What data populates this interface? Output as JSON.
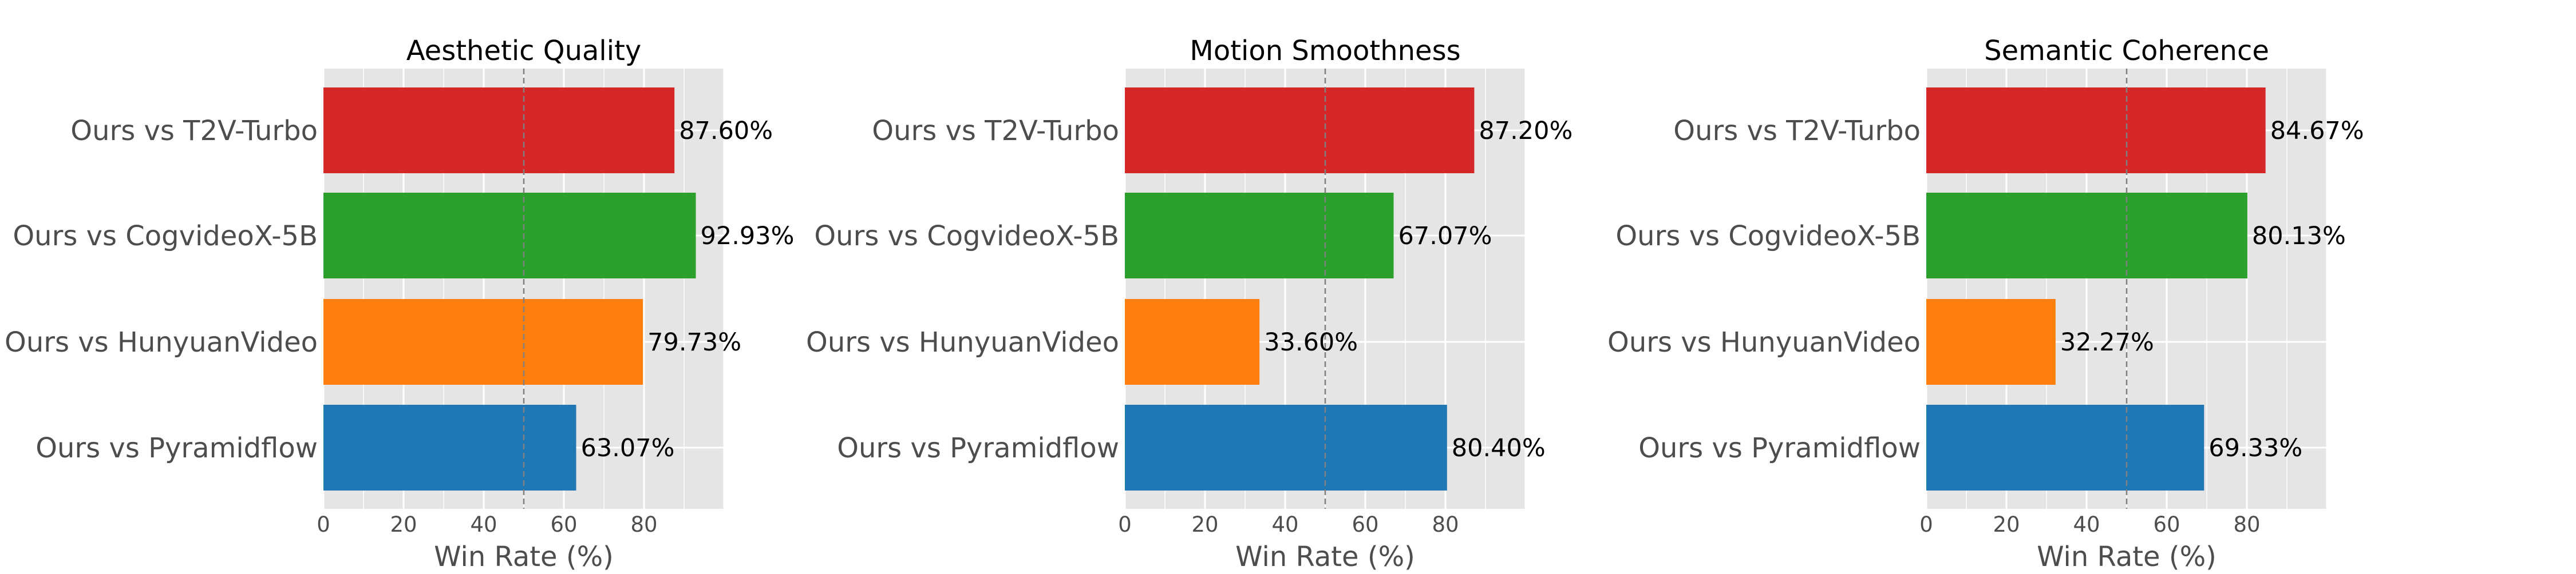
{
  "chart_data": [
    {
      "type": "bar",
      "orientation": "horizontal",
      "title": "Aesthetic Quality",
      "xlabel": "Win Rate (%)",
      "ylabel": "",
      "xlim": [
        0,
        100
      ],
      "xticks": [
        0,
        20,
        40,
        60,
        80
      ],
      "reference_line": 50,
      "grid": true,
      "categories": [
        "Ours vs T2V-Turbo",
        "Ours vs CogvideoX-5B",
        "Ours vs HunyuanVideo",
        "Ours vs Pyramidflow"
      ],
      "values": [
        87.6,
        92.93,
        79.73,
        63.07
      ],
      "value_labels": [
        "87.60%",
        "92.93%",
        "79.73%",
        "63.07%"
      ],
      "colors": [
        "#d62728",
        "#2ca02c",
        "#ff7f0e",
        "#1f77b4"
      ]
    },
    {
      "type": "bar",
      "orientation": "horizontal",
      "title": "Motion Smoothness",
      "xlabel": "Win Rate (%)",
      "ylabel": "",
      "xlim": [
        0,
        100
      ],
      "xticks": [
        0,
        20,
        40,
        60,
        80
      ],
      "reference_line": 50,
      "grid": true,
      "categories": [
        "Ours vs T2V-Turbo",
        "Ours vs CogvideoX-5B",
        "Ours vs HunyuanVideo",
        "Ours vs Pyramidflow"
      ],
      "values": [
        87.2,
        67.07,
        33.6,
        80.4
      ],
      "value_labels": [
        "87.20%",
        "67.07%",
        "33.60%",
        "80.40%"
      ],
      "colors": [
        "#d62728",
        "#2ca02c",
        "#ff7f0e",
        "#1f77b4"
      ]
    },
    {
      "type": "bar",
      "orientation": "horizontal",
      "title": "Semantic Coherence",
      "xlabel": "Win Rate (%)",
      "ylabel": "",
      "xlim": [
        0,
        100
      ],
      "xticks": [
        0,
        20,
        40,
        60,
        80
      ],
      "reference_line": 50,
      "grid": true,
      "categories": [
        "Ours vs T2V-Turbo",
        "Ours vs CogvideoX-5B",
        "Ours vs HunyuanVideo",
        "Ours vs Pyramidflow"
      ],
      "values": [
        84.67,
        80.13,
        32.27,
        69.33
      ],
      "value_labels": [
        "84.67%",
        "80.13%",
        "32.27%",
        "69.33%"
      ],
      "colors": [
        "#d62728",
        "#2ca02c",
        "#ff7f0e",
        "#1f77b4"
      ]
    }
  ],
  "style": {
    "background": "#ffffff",
    "plot_background": "#e5e5e5",
    "grid_color": "#ffffff",
    "reference_line_color": "#808080",
    "text_color": "#000000",
    "label_color": "#4d4d4d"
  }
}
